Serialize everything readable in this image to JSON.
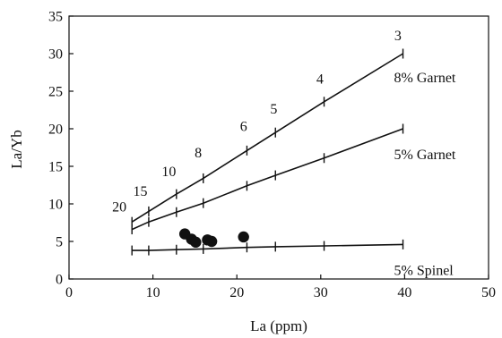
{
  "chart_data": {
    "type": "line",
    "xlabel": "La (ppm)",
    "ylabel": "La/Yb",
    "xlim": [
      0,
      50
    ],
    "ylim": [
      0,
      35
    ],
    "x_ticks": [
      "0",
      "10",
      "20",
      "30",
      "40",
      "50"
    ],
    "y_ticks": [
      "0",
      "5",
      "10",
      "15",
      "20",
      "25",
      "30",
      "35"
    ],
    "grid": false,
    "series": [
      {
        "name": "8% Garnet",
        "points": [
          [
            7.5,
            7.6
          ],
          [
            9.5,
            9.0
          ],
          [
            12.8,
            11.3
          ],
          [
            16.0,
            13.4
          ],
          [
            21.2,
            17.1
          ],
          [
            24.6,
            19.5
          ],
          [
            30.4,
            23.6
          ],
          [
            39.8,
            30.0
          ]
        ],
        "annotations": [
          {
            "text": "20",
            "x": 6.0,
            "y": 9.0
          },
          {
            "text": "15",
            "x": 8.5,
            "y": 11.1
          },
          {
            "text": "10",
            "x": 11.9,
            "y": 13.7
          },
          {
            "text": "8",
            "x": 15.4,
            "y": 16.2
          },
          {
            "text": "6",
            "x": 20.8,
            "y": 19.7
          },
          {
            "text": "5",
            "x": 24.4,
            "y": 22.0
          },
          {
            "text": "4",
            "x": 29.9,
            "y": 26.0
          },
          {
            "text": "3",
            "x": 39.2,
            "y": 31.8
          }
        ]
      },
      {
        "name": "5% Garnet",
        "points": [
          [
            7.5,
            6.6
          ],
          [
            9.5,
            7.6
          ],
          [
            12.8,
            8.9
          ],
          [
            16.0,
            10.1
          ],
          [
            21.2,
            12.4
          ],
          [
            24.6,
            13.8
          ],
          [
            30.4,
            16.1
          ],
          [
            39.8,
            20.0
          ]
        ]
      },
      {
        "name": "5% Spinel",
        "points": [
          [
            7.5,
            3.8
          ],
          [
            9.5,
            3.8
          ],
          [
            12.8,
            3.9
          ],
          [
            16.0,
            4.0
          ],
          [
            21.2,
            4.2
          ],
          [
            24.6,
            4.3
          ],
          [
            30.4,
            4.4
          ],
          [
            39.8,
            4.6
          ]
        ]
      }
    ],
    "samples": {
      "points": [
        [
          13.8,
          6.0
        ],
        [
          14.6,
          5.3
        ],
        [
          15.1,
          4.9
        ],
        [
          16.5,
          5.2
        ],
        [
          17.0,
          5.0
        ],
        [
          20.8,
          5.6
        ]
      ]
    }
  }
}
